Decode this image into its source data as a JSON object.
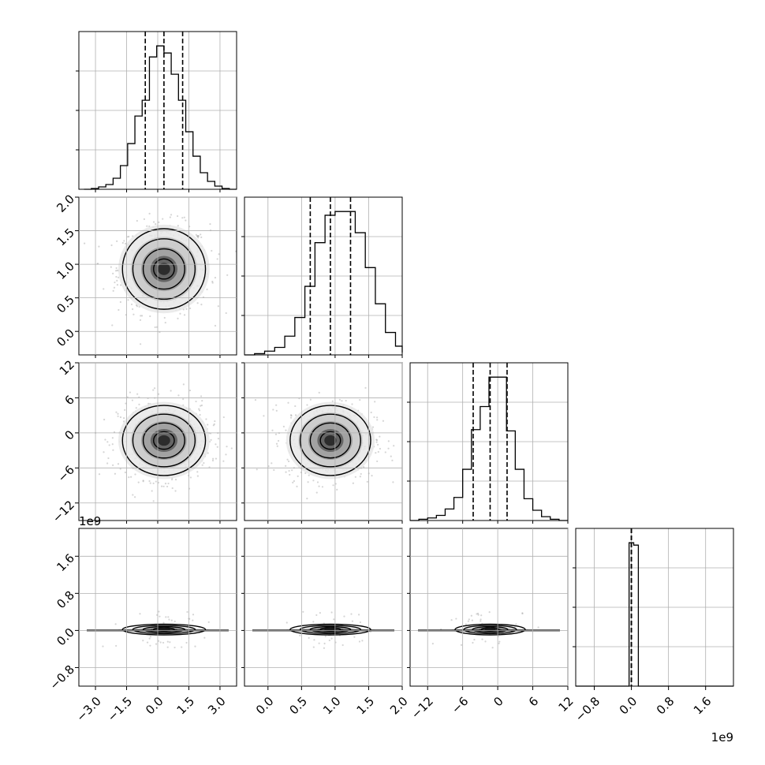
{
  "chart_data": {
    "type": "corner",
    "title": "",
    "parameters": 4,
    "colors": {
      "axes": "#000000",
      "grid": "#b0b0b0",
      "scatter": "#888888",
      "hist": "#000000",
      "quantile_lines": "#000000",
      "background": "#ffffff"
    },
    "quantile_lines": "dashed, 16/50/84 percentiles",
    "grid": true,
    "axes": [
      {
        "range": [
          -3.8,
          3.8
        ],
        "ticks": [
          -3.0,
          -1.5,
          0.0,
          1.5,
          3.0
        ],
        "tick_labels": [
          "−3.0",
          "−1.5",
          "0.0",
          "1.5",
          "3.0"
        ],
        "quantiles": [
          -0.6,
          0.3,
          1.2
        ]
      },
      {
        "range": [
          -0.35,
          2.0
        ],
        "ticks": [
          0.0,
          0.5,
          1.0,
          1.5,
          2.0
        ],
        "tick_labels": [
          "0.0",
          "0.5",
          "1.0",
          "1.5",
          "2.0"
        ],
        "quantiles": [
          0.63,
          0.93,
          1.23
        ]
      },
      {
        "range": [
          -15,
          12
        ],
        "ticks": [
          -12,
          -6,
          0,
          6,
          12
        ],
        "tick_labels": [
          "−12",
          "−6",
          "0",
          "6",
          "12"
        ],
        "quantiles": [
          -4.2,
          -1.3,
          1.6
        ]
      },
      {
        "range": [
          -1.2,
          2.2
        ],
        "ticks": [
          -0.8,
          0.0,
          0.8,
          1.6
        ],
        "tick_labels": [
          "−0.8",
          "0.0",
          "0.8",
          "1.6"
        ],
        "quantiles": [
          0.0,
          0.0,
          0.0
        ],
        "offset_label": "1e9"
      }
    ],
    "histograms": [
      {
        "param": 0,
        "bin_edges": [
          -3.55,
          -3.2,
          -2.85,
          -2.5,
          -2.15,
          -1.8,
          -1.45,
          -1.1,
          -0.75,
          -0.4,
          -0.05,
          0.3,
          0.65,
          1.0,
          1.35,
          1.7,
          2.05,
          2.4,
          2.75,
          3.1,
          3.45,
          3.8
        ],
        "counts": [
          0,
          1,
          3,
          6,
          14,
          30,
          58,
          93,
          113,
          168,
          182,
          173,
          146,
          113,
          73,
          42,
          21,
          10,
          4,
          1,
          0
        ]
      },
      {
        "param": 1,
        "bin_edges": [
          -0.35,
          -0.2,
          -0.05,
          0.1,
          0.25,
          0.4,
          0.55,
          0.7,
          0.85,
          1.0,
          1.15,
          1.3,
          1.45,
          1.6,
          1.75,
          1.9,
          2.05
        ],
        "counts": [
          0,
          1,
          3,
          6,
          15,
          30,
          55,
          90,
          112,
          115,
          115,
          98,
          70,
          41,
          18,
          7,
          2
        ]
      },
      {
        "param": 2,
        "bin_edges": [
          -15,
          -13.5,
          -12,
          -10.5,
          -9,
          -7.5,
          -6,
          -4.5,
          -3,
          -1.5,
          0,
          1.5,
          3,
          4.5,
          6,
          7.5,
          9,
          10.5,
          12
        ],
        "counts": [
          0,
          1,
          2,
          4,
          9,
          18,
          40,
          71,
          89,
          112,
          112,
          70,
          40,
          17,
          8,
          3,
          1,
          0
        ]
      },
      {
        "param": 3,
        "bin_edges": [
          -1.2,
          -0.05,
          0.05,
          0.15,
          2.2
        ],
        "counts": [
          0,
          120,
          118,
          0
        ]
      }
    ],
    "contours": [
      {
        "x_param": 0,
        "y_param": 1,
        "center": [
          0.3,
          0.93
        ],
        "sigmas": [
          1.0,
          0.3
        ],
        "levels": [
          0.5,
          1.0,
          1.5,
          2.0
        ]
      },
      {
        "x_param": 0,
        "y_param": 2,
        "center": [
          0.3,
          -1.3
        ],
        "sigmas": [
          1.0,
          3.0
        ],
        "levels": [
          0.5,
          1.0,
          1.5,
          2.0
        ]
      },
      {
        "x_param": 1,
        "y_param": 2,
        "center": [
          0.93,
          -1.3
        ],
        "sigmas": [
          0.3,
          3.0
        ],
        "levels": [
          0.5,
          1.0,
          1.5,
          2.0
        ]
      },
      {
        "x_param": 0,
        "y_param": 3,
        "center": [
          0.3,
          0.02
        ],
        "sigmas": [
          1.0,
          0.02
        ],
        "levels": [
          0.5,
          1.0,
          1.5,
          2.0
        ]
      },
      {
        "x_param": 1,
        "y_param": 3,
        "center": [
          0.93,
          0.02
        ],
        "sigmas": [
          0.3,
          0.02
        ],
        "levels": [
          0.5,
          1.0,
          1.5,
          2.0
        ]
      },
      {
        "x_param": 2,
        "y_param": 3,
        "center": [
          -1.3,
          0.02
        ],
        "sigmas": [
          3.0,
          0.02
        ],
        "levels": [
          0.5,
          1.0,
          1.5,
          2.0
        ]
      }
    ]
  }
}
